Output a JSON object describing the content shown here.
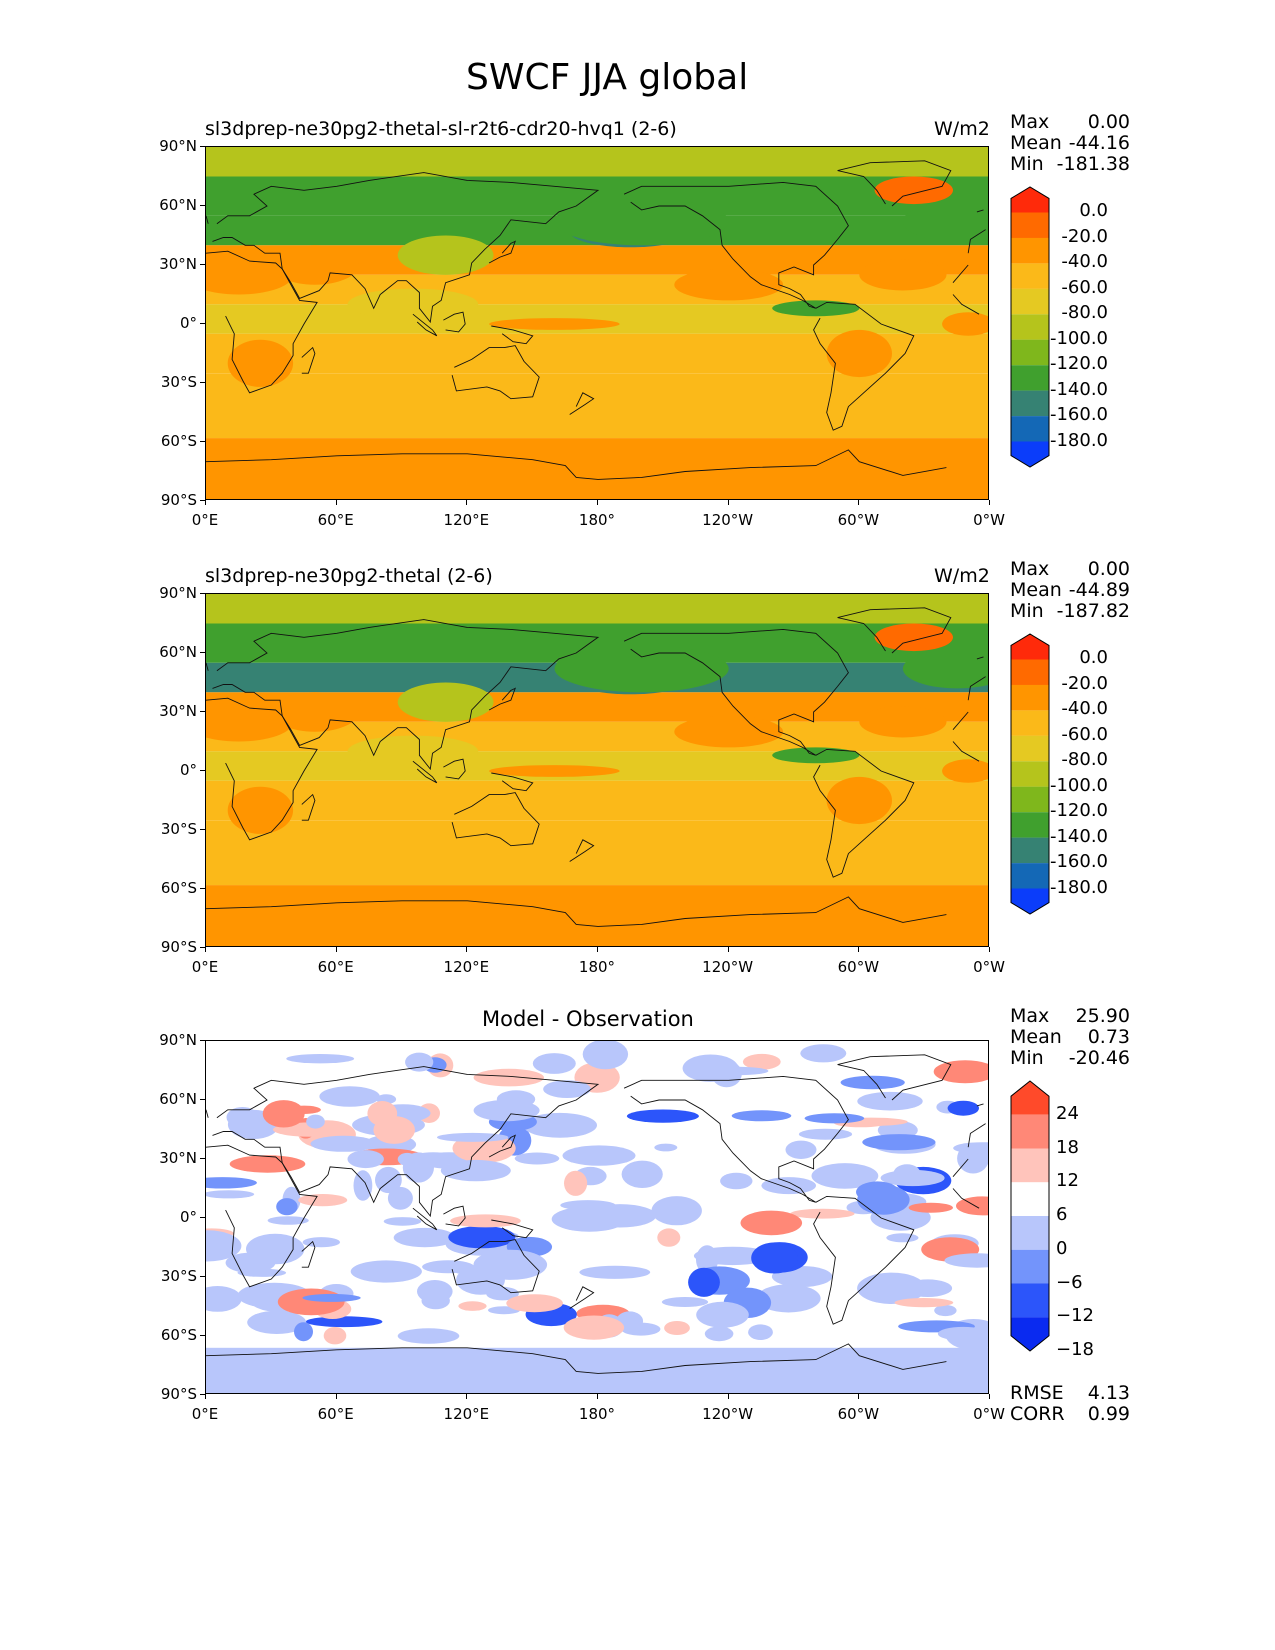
{
  "title": "SWCF JJA global",
  "panels": [
    {
      "name": "test",
      "title": "sl3dprep-ne30pg2-thetal-sl-r2t6-cdr20-hvq1 (2-6)",
      "units": "W/m2",
      "stats": {
        "max_label": "Max",
        "max": "0.00",
        "mean_label": "Mean",
        "mean": "-44.16",
        "min_label": "Min",
        "min": "-181.38"
      },
      "colorbar": {
        "labels": [
          "0.0",
          "-20.0",
          "-40.0",
          "-60.0",
          "-80.0",
          "-100.0",
          "-120.0",
          "-140.0",
          "-160.0",
          "-180.0"
        ],
        "colors": [
          "#ff2a0a",
          "#ff6a00",
          "#ff9500",
          "#fbb919",
          "#e5c922",
          "#b5c41c",
          "#7fb71c",
          "#40a02e",
          "#368273",
          "#1468b6",
          "#0b3dfa"
        ]
      }
    },
    {
      "name": "reference",
      "title": "sl3dprep-ne30pg2-thetal (2-6)",
      "units": "W/m2",
      "stats": {
        "max_label": "Max",
        "max": "0.00",
        "mean_label": "Mean",
        "mean": "-44.89",
        "min_label": "Min",
        "min": "-187.82"
      },
      "colorbar": {
        "labels": [
          "0.0",
          "-20.0",
          "-40.0",
          "-60.0",
          "-80.0",
          "-100.0",
          "-120.0",
          "-140.0",
          "-160.0",
          "-180.0"
        ],
        "colors": [
          "#ff2a0a",
          "#ff6a00",
          "#ff9500",
          "#fbb919",
          "#e5c922",
          "#b5c41c",
          "#7fb71c",
          "#40a02e",
          "#368273",
          "#1468b6",
          "#0b3dfa"
        ]
      }
    },
    {
      "name": "difference",
      "title": "Model - Observation",
      "units": "",
      "stats": {
        "max_label": "Max",
        "max": "25.90",
        "mean_label": "Mean",
        "mean": "0.73",
        "min_label": "Min",
        "min": "-20.46"
      },
      "colorbar": {
        "labels": [
          "24",
          "18",
          "12",
          "6",
          "0",
          "−6",
          "−12",
          "−18"
        ],
        "colors": [
          "#ff4a2a",
          "#ff8877",
          "#ffc4bb",
          "#ffffff",
          "#b8c6fb",
          "#7394fb",
          "#2c55fa",
          "#0a2af0"
        ]
      },
      "rmse_label": "RMSE",
      "rmse": "4.13",
      "corr_label": "CORR",
      "corr": "0.99"
    }
  ],
  "axes": {
    "lat_labels": [
      "90°N",
      "60°N",
      "30°N",
      "0°",
      "30°S",
      "60°S",
      "90°S"
    ],
    "lon_labels": [
      "0°E",
      "60°E",
      "120°E",
      "180°",
      "120°W",
      "60°W",
      "0°W"
    ]
  },
  "chart_data": [
    {
      "type": "heatmap",
      "title": "sl3dprep-ne30pg2-thetal-sl-r2t6-cdr20-hvq1 (2-6)",
      "variable": "SWCF",
      "season": "JJA",
      "units": "W/m2",
      "xlim": [
        0,
        360
      ],
      "ylim": [
        -90,
        90
      ],
      "contour_levels": [
        -180,
        -160,
        -140,
        -120,
        -100,
        -80,
        -60,
        -40,
        -20,
        0
      ],
      "max": 0.0,
      "mean": -44.16,
      "min": -181.38,
      "zonal_bands": [
        {
          "lat_range": [
            75,
            90
          ],
          "value": -90
        },
        {
          "lat_range": [
            55,
            75
          ],
          "value": -120
        },
        {
          "lat_range": [
            40,
            55
          ],
          "value": -135
        },
        {
          "lat_range": [
            25,
            40
          ],
          "value": -35
        },
        {
          "lat_range": [
            10,
            25
          ],
          "value": -45
        },
        {
          "lat_range": [
            -5,
            10
          ],
          "value": -65
        },
        {
          "lat_range": [
            -25,
            -5
          ],
          "value": -40
        },
        {
          "lat_range": [
            -45,
            -25
          ],
          "value": -45
        },
        {
          "lat_range": [
            -58,
            -45
          ],
          "value": -55
        },
        {
          "lat_range": [
            -90,
            -58
          ],
          "value": -20
        }
      ]
    },
    {
      "type": "heatmap",
      "title": "sl3dprep-ne30pg2-thetal (2-6)",
      "variable": "SWCF",
      "season": "JJA",
      "units": "W/m2",
      "xlim": [
        0,
        360
      ],
      "ylim": [
        -90,
        90
      ],
      "contour_levels": [
        -180,
        -160,
        -140,
        -120,
        -100,
        -80,
        -60,
        -40,
        -20,
        0
      ],
      "max": 0.0,
      "mean": -44.89,
      "min": -187.82,
      "zonal_bands": [
        {
          "lat_range": [
            75,
            90
          ],
          "value": -90
        },
        {
          "lat_range": [
            55,
            75
          ],
          "value": -120
        },
        {
          "lat_range": [
            40,
            55
          ],
          "value": -140
        },
        {
          "lat_range": [
            25,
            40
          ],
          "value": -35
        },
        {
          "lat_range": [
            10,
            25
          ],
          "value": -45
        },
        {
          "lat_range": [
            -5,
            10
          ],
          "value": -65
        },
        {
          "lat_range": [
            -25,
            -5
          ],
          "value": -40
        },
        {
          "lat_range": [
            -45,
            -25
          ],
          "value": -45
        },
        {
          "lat_range": [
            -58,
            -45
          ],
          "value": -55
        },
        {
          "lat_range": [
            -90,
            -58
          ],
          "value": -20
        }
      ]
    },
    {
      "type": "heatmap",
      "title": "Model - Observation",
      "variable": "SWCF difference",
      "season": "JJA",
      "units": "W/m2",
      "xlim": [
        0,
        360
      ],
      "ylim": [
        -90,
        90
      ],
      "contour_levels": [
        -18,
        -12,
        -6,
        0,
        6,
        12,
        18,
        24
      ],
      "max": 25.9,
      "mean": 0.73,
      "min": -20.46,
      "rmse": 4.13,
      "corr": 0.99
    }
  ]
}
